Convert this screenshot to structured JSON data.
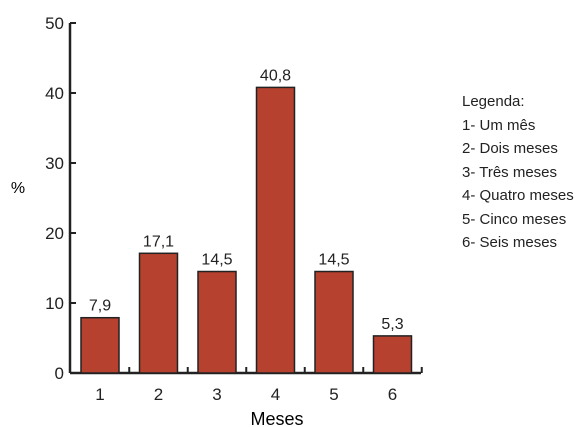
{
  "chart_data": {
    "type": "bar",
    "categories": [
      "1",
      "2",
      "3",
      "4",
      "5",
      "6"
    ],
    "values": [
      7.9,
      17.1,
      14.5,
      40.8,
      14.5,
      5.3
    ],
    "value_labels": [
      "7,9",
      "17,1",
      "14,5",
      "40,8",
      "14,5",
      "5,3"
    ],
    "xlabel": "Meses",
    "ylabel": "%",
    "ylim": [
      0,
      50
    ],
    "yticks": [
      "0",
      "10",
      "20",
      "30",
      "40",
      "50"
    ],
    "grid": false,
    "bar_color": "#b5412e",
    "legend_position": "right"
  },
  "legend": {
    "title": "Legenda:",
    "items": [
      "1- Um mês",
      "2- Dois meses",
      "3- Três meses",
      "4- Quatro meses",
      "5- Cinco meses",
      "6- Seis meses"
    ]
  }
}
